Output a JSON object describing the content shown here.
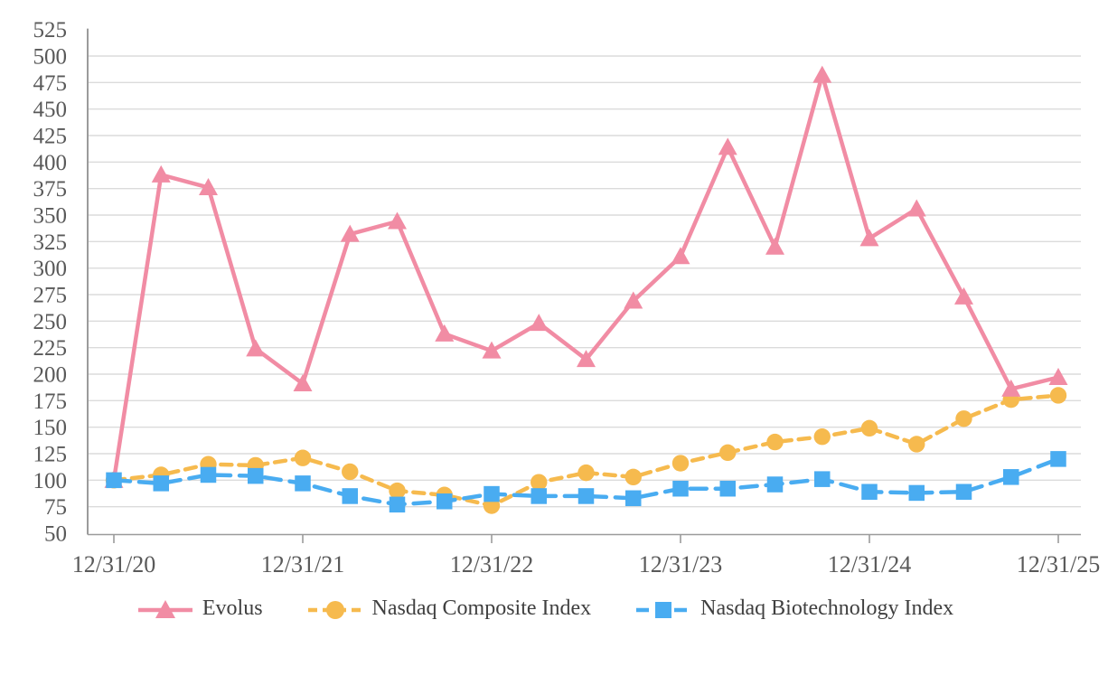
{
  "chart_data": {
    "type": "line",
    "title": "",
    "description": "Indexed stock performance comparison, quarterly points from 12/31/20 to 12/31/25, all series starting at 100",
    "x_tick_labels": [
      "12/31/20",
      "12/31/21",
      "12/31/22",
      "12/31/23",
      "12/31/24",
      "12/31/25"
    ],
    "points_per_year": 4,
    "y_axis": {
      "min": 50,
      "max": 525,
      "step": 25
    },
    "grid": "horizontal-only",
    "legend_position": "bottom",
    "series": [
      {
        "name": "Evolus",
        "color": "#F18CA4",
        "marker": "triangle",
        "line_style": "solid",
        "dash": "none",
        "values": [
          100,
          388,
          376,
          224,
          191,
          332,
          344,
          238,
          222,
          248,
          214,
          269,
          311,
          414,
          320,
          482,
          328,
          356,
          273,
          186,
          197
        ]
      },
      {
        "name": "Nasdaq Composite Index",
        "color": "#F6BA4E",
        "marker": "circle",
        "line_style": "dashed",
        "dash": "medium",
        "values": [
          100,
          105,
          115,
          114,
          121,
          108,
          90,
          86,
          76,
          98,
          107,
          103,
          116,
          126,
          136,
          141,
          149,
          134,
          158,
          176,
          180
        ]
      },
      {
        "name": "Nasdaq Biotechnology Index",
        "color": "#49ACF1",
        "marker": "square",
        "line_style": "dashed",
        "dash": "long",
        "values": [
          100,
          97,
          105,
          104,
          97,
          85,
          77,
          80,
          87,
          85,
          85,
          83,
          92,
          92,
          96,
          101,
          89,
          88,
          89,
          103,
          120
        ]
      }
    ],
    "style": {
      "gridline_color": "#DBDBDB",
      "axis_color": "#9B9B9B",
      "tick_label_color": "#595959",
      "legend_text_color": "#404040",
      "background": "#FFFFFF"
    }
  }
}
